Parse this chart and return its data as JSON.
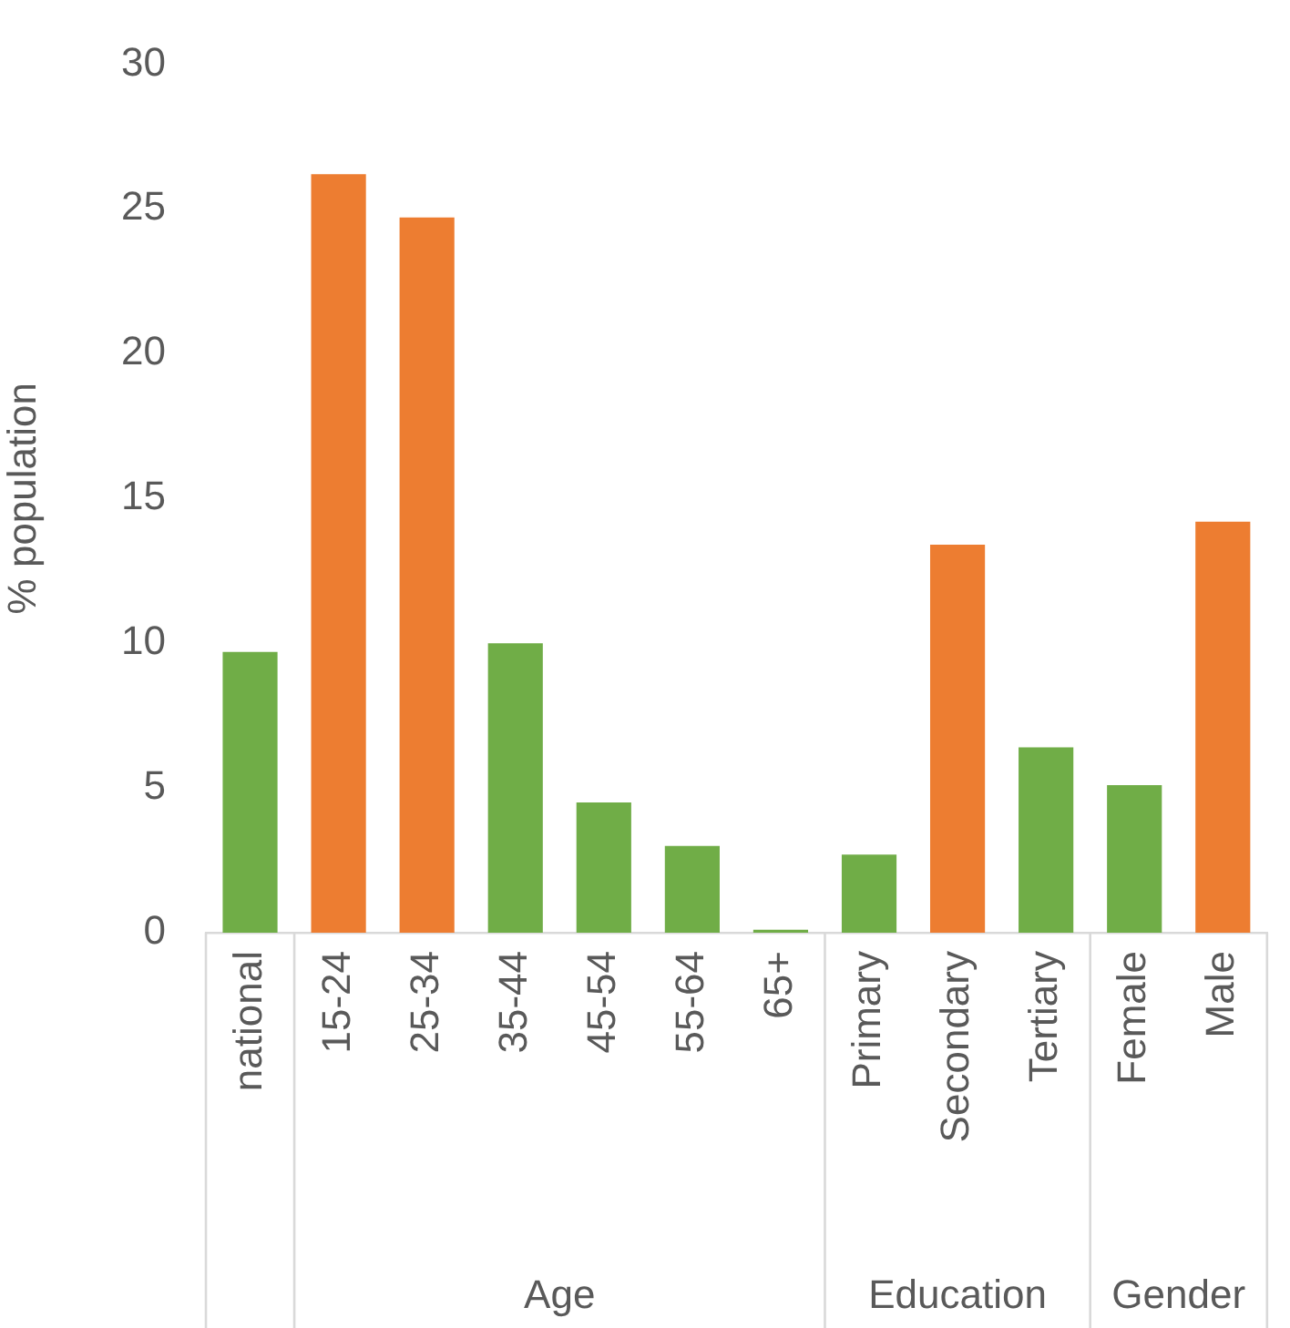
{
  "chart_data": {
    "type": "bar",
    "ylabel": "% population",
    "categories": [
      "national",
      "15-24",
      "25-34",
      "35-44",
      "45-54",
      "55-64",
      "65+",
      "Primary",
      "Secondary",
      "Tertiary",
      "Female",
      "Male"
    ],
    "values": [
      9.7,
      26.2,
      24.7,
      10.0,
      4.5,
      3.0,
      0.1,
      2.7,
      13.4,
      6.4,
      5.1,
      14.2
    ],
    "colors": [
      "#70ad47",
      "#ed7d31",
      "#ed7d31",
      "#70ad47",
      "#70ad47",
      "#70ad47",
      "#70ad47",
      "#70ad47",
      "#ed7d31",
      "#70ad47",
      "#70ad47",
      "#ed7d31"
    ],
    "ylim": [
      0,
      30
    ],
    "yticks": [
      0,
      5,
      10,
      15,
      20,
      25,
      30
    ],
    "grid": false,
    "legend": false,
    "annotations": [
      "Age",
      "Education",
      "Gender"
    ]
  }
}
